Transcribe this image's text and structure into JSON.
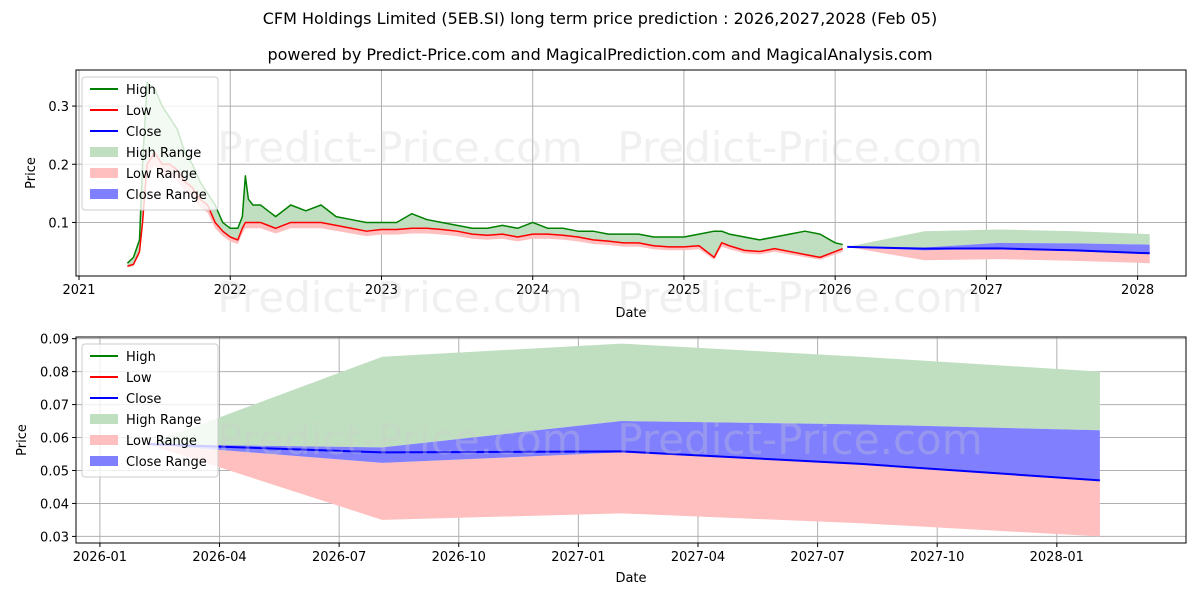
{
  "header": {
    "title": "CFM Holdings Limited (5EB.SI) long term price prediction : 2026,2027,2028 (Feb 05)",
    "subtitle": "powered by Predict-Price.com and MagicalPrediction.com and MagicalAnalysis.com"
  },
  "watermark": "Predict-Price.com",
  "colors": {
    "high": "#008000",
    "low": "#ff0000",
    "close": "#0000ff",
    "high_range": "#c0dfc0",
    "low_range": "#ffbfbf",
    "close_range": "#8080ff",
    "grid": "#b0b0b0"
  },
  "chart_data": [
    {
      "type": "line",
      "title": "",
      "xlabel": "Date",
      "ylabel": "Price",
      "x_unit": "year",
      "xlim": [
        2020.98,
        2028.32
      ],
      "ylim": [
        0.008,
        0.362
      ],
      "xticks": [
        2021,
        2022,
        2023,
        2024,
        2025,
        2026,
        2027,
        2028
      ],
      "xtick_labels": [
        "2021",
        "2022",
        "2023",
        "2024",
        "2025",
        "2026",
        "2027",
        "2028"
      ],
      "yticks": [
        0.1,
        0.2,
        0.3
      ],
      "ytick_labels": [
        "0.1",
        "0.2",
        "0.3"
      ],
      "legend": [
        "High",
        "Low",
        "Close",
        "High Range",
        "Low Range",
        "Close Range"
      ],
      "legend_position": "upper left",
      "grid": true,
      "history": {
        "x": [
          2021.32,
          2021.36,
          2021.4,
          2021.42,
          2021.45,
          2021.5,
          2021.55,
          2021.6,
          2021.65,
          2021.7,
          2021.75,
          2021.8,
          2021.85,
          2021.9,
          2021.95,
          2022.0,
          2022.05,
          2022.08,
          2022.1,
          2022.12,
          2022.15,
          2022.2,
          2022.25,
          2022.3,
          2022.4,
          2022.5,
          2022.6,
          2022.7,
          2022.8,
          2022.9,
          2023.0,
          2023.1,
          2023.2,
          2023.3,
          2023.4,
          2023.5,
          2023.6,
          2023.7,
          2023.8,
          2023.9,
          2024.0,
          2024.1,
          2024.2,
          2024.3,
          2024.4,
          2024.5,
          2024.6,
          2024.7,
          2024.8,
          2024.9,
          2025.0,
          2025.1,
          2025.2,
          2025.25,
          2025.3,
          2025.4,
          2025.5,
          2025.6,
          2025.7,
          2025.8,
          2025.9,
          2026.0,
          2026.05
        ],
        "high": [
          0.03,
          0.04,
          0.07,
          0.2,
          0.34,
          0.33,
          0.3,
          0.28,
          0.26,
          0.22,
          0.2,
          0.17,
          0.15,
          0.13,
          0.1,
          0.09,
          0.09,
          0.11,
          0.18,
          0.14,
          0.13,
          0.13,
          0.12,
          0.11,
          0.13,
          0.12,
          0.13,
          0.11,
          0.105,
          0.1,
          0.1,
          0.1,
          0.115,
          0.105,
          0.1,
          0.095,
          0.09,
          0.09,
          0.095,
          0.09,
          0.1,
          0.09,
          0.09,
          0.085,
          0.085,
          0.08,
          0.08,
          0.08,
          0.075,
          0.075,
          0.075,
          0.08,
          0.085,
          0.085,
          0.08,
          0.075,
          0.07,
          0.075,
          0.08,
          0.085,
          0.08,
          0.065,
          0.062
        ],
        "low": [
          0.025,
          0.028,
          0.05,
          0.1,
          0.2,
          0.22,
          0.2,
          0.2,
          0.19,
          0.17,
          0.16,
          0.14,
          0.13,
          0.1,
          0.085,
          0.075,
          0.07,
          0.09,
          0.1,
          0.1,
          0.1,
          0.1,
          0.095,
          0.09,
          0.1,
          0.1,
          0.1,
          0.095,
          0.09,
          0.085,
          0.088,
          0.088,
          0.09,
          0.09,
          0.088,
          0.085,
          0.08,
          0.078,
          0.08,
          0.075,
          0.08,
          0.08,
          0.078,
          0.075,
          0.07,
          0.068,
          0.065,
          0.065,
          0.06,
          0.058,
          0.058,
          0.06,
          0.04,
          0.065,
          0.06,
          0.052,
          0.05,
          0.055,
          0.05,
          0.045,
          0.04,
          0.05,
          0.055
        ]
      },
      "forecast": {
        "x": [
          2026.08,
          2026.59,
          2027.08,
          2027.59,
          2028.08
        ],
        "high": [
          0.058,
          0.085,
          0.088,
          0.085,
          0.08
        ],
        "close_upper": [
          0.058,
          0.057,
          0.065,
          0.064,
          0.062
        ],
        "close_lower": [
          0.058,
          0.052,
          0.056,
          0.052,
          0.047
        ],
        "low": [
          0.058,
          0.035,
          0.037,
          0.034,
          0.03
        ],
        "close": [
          0.058,
          0.055,
          0.0555,
          0.052,
          0.047
        ]
      }
    },
    {
      "type": "line",
      "title": "",
      "xlabel": "Date",
      "ylabel": "Price",
      "x_unit": "month",
      "xlim": [
        2025.95,
        2028.27
      ],
      "ylim": [
        0.028,
        0.0905
      ],
      "xticks": [
        2026.0,
        2026.25,
        2026.5,
        2026.75,
        2027.0,
        2027.25,
        2027.5,
        2027.75,
        2028.0
      ],
      "xtick_labels": [
        "2026-01",
        "2026-04",
        "2026-07",
        "2026-10",
        "2027-01",
        "2027-04",
        "2027-07",
        "2027-10",
        "2028-01"
      ],
      "yticks": [
        0.03,
        0.04,
        0.05,
        0.06,
        0.07,
        0.08,
        0.09
      ],
      "ytick_labels": [
        "0.03",
        "0.04",
        "0.05",
        "0.06",
        "0.07",
        "0.08",
        "0.09"
      ],
      "legend": [
        "High",
        "Low",
        "Close",
        "High Range",
        "Low Range",
        "Close Range"
      ],
      "legend_position": "upper left",
      "grid": true,
      "forecast": {
        "x": [
          2026.1,
          2026.59,
          2027.09,
          2027.59,
          2028.09
        ],
        "high": [
          0.058,
          0.0845,
          0.0885,
          0.0845,
          0.08
        ],
        "close_upper": [
          0.058,
          0.057,
          0.065,
          0.064,
          0.0622
        ],
        "close_lower": [
          0.058,
          0.0523,
          0.0555,
          0.052,
          0.047
        ],
        "low": [
          0.058,
          0.035,
          0.037,
          0.034,
          0.03
        ],
        "close": [
          0.058,
          0.0555,
          0.0558,
          0.052,
          0.047
        ]
      }
    }
  ]
}
